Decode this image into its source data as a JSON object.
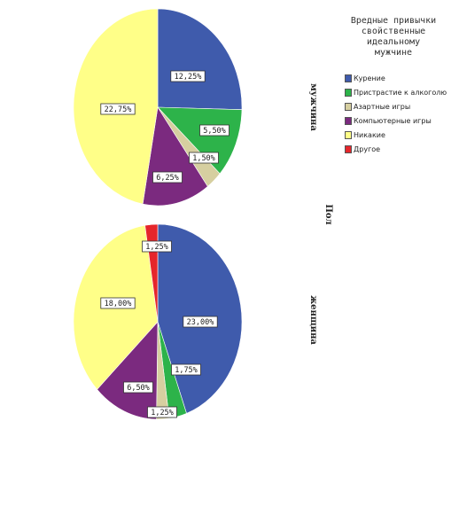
{
  "chart_data": {
    "type": "pie",
    "legend": {
      "title": "Вредные привычки\nсвойственные\nидеальному\nмужчине",
      "position": "top-right",
      "items": [
        {
          "label": "Курение",
          "color": "#3f5bac"
        },
        {
          "label": "Пристрастие к алкоголю",
          "color": "#2db34a"
        },
        {
          "label": "Азартные игры",
          "color": "#d6cfa0"
        },
        {
          "label": "Компьютерные игры",
          "color": "#7b2a7f"
        },
        {
          "label": "Никакие",
          "color": "#ffff88"
        },
        {
          "label": "Другое",
          "color": "#e5262b"
        }
      ]
    },
    "facet_axis_title": "Пол",
    "pies": [
      {
        "panel_label": "мужчина",
        "slices": [
          {
            "category": "Курение",
            "value": 12.25,
            "label": "12,25%"
          },
          {
            "category": "Пристрастие к алкоголю",
            "value": 5.5,
            "label": "5,50%"
          },
          {
            "category": "Азартные игры",
            "value": 1.5,
            "label": "1,50%"
          },
          {
            "category": "Компьютерные игры",
            "value": 6.25,
            "label": "6,25%"
          },
          {
            "category": "Никакие",
            "value": 22.75,
            "label": "22,75%"
          }
        ]
      },
      {
        "panel_label": "женщина",
        "slices": [
          {
            "category": "Курение",
            "value": 23.0,
            "label": "23,00%"
          },
          {
            "category": "Пристрастие к алкоголю",
            "value": 1.75,
            "label": "1,75%"
          },
          {
            "category": "Азартные игры",
            "value": 1.25,
            "label": "1,25%"
          },
          {
            "category": "Компьютерные игры",
            "value": 6.5,
            "label": "6,50%"
          },
          {
            "category": "Никакие",
            "value": 18.0,
            "label": "18,00%"
          },
          {
            "category": "Другое",
            "value": 1.25,
            "label": "1,25%"
          }
        ]
      }
    ]
  }
}
